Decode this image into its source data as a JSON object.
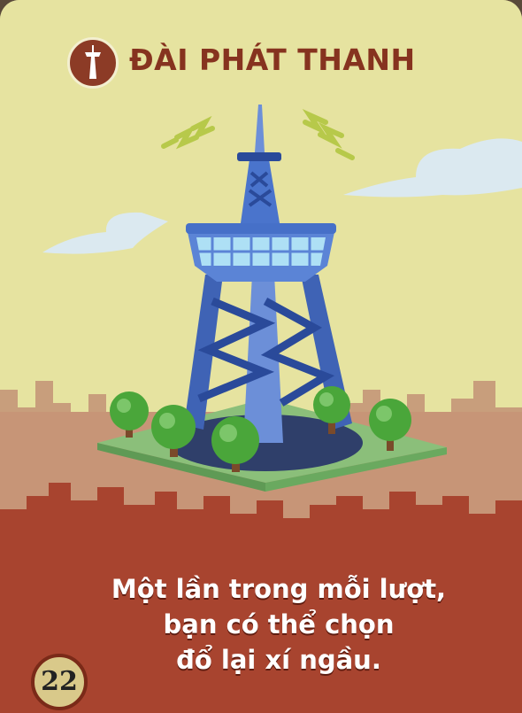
{
  "card": {
    "title": "ĐÀI PHÁT THANH",
    "title_icon": "radio-tower-icon",
    "ability_lines": [
      "Một lần trong mỗi lượt,",
      "bạn có thể chọn",
      "đổ lại xí ngầu."
    ],
    "cost": "22"
  },
  "colors": {
    "sky": "#e6e3a0",
    "title_text": "#86331f",
    "lower_band": "#a8442f",
    "ability_text": "#ffffff"
  }
}
